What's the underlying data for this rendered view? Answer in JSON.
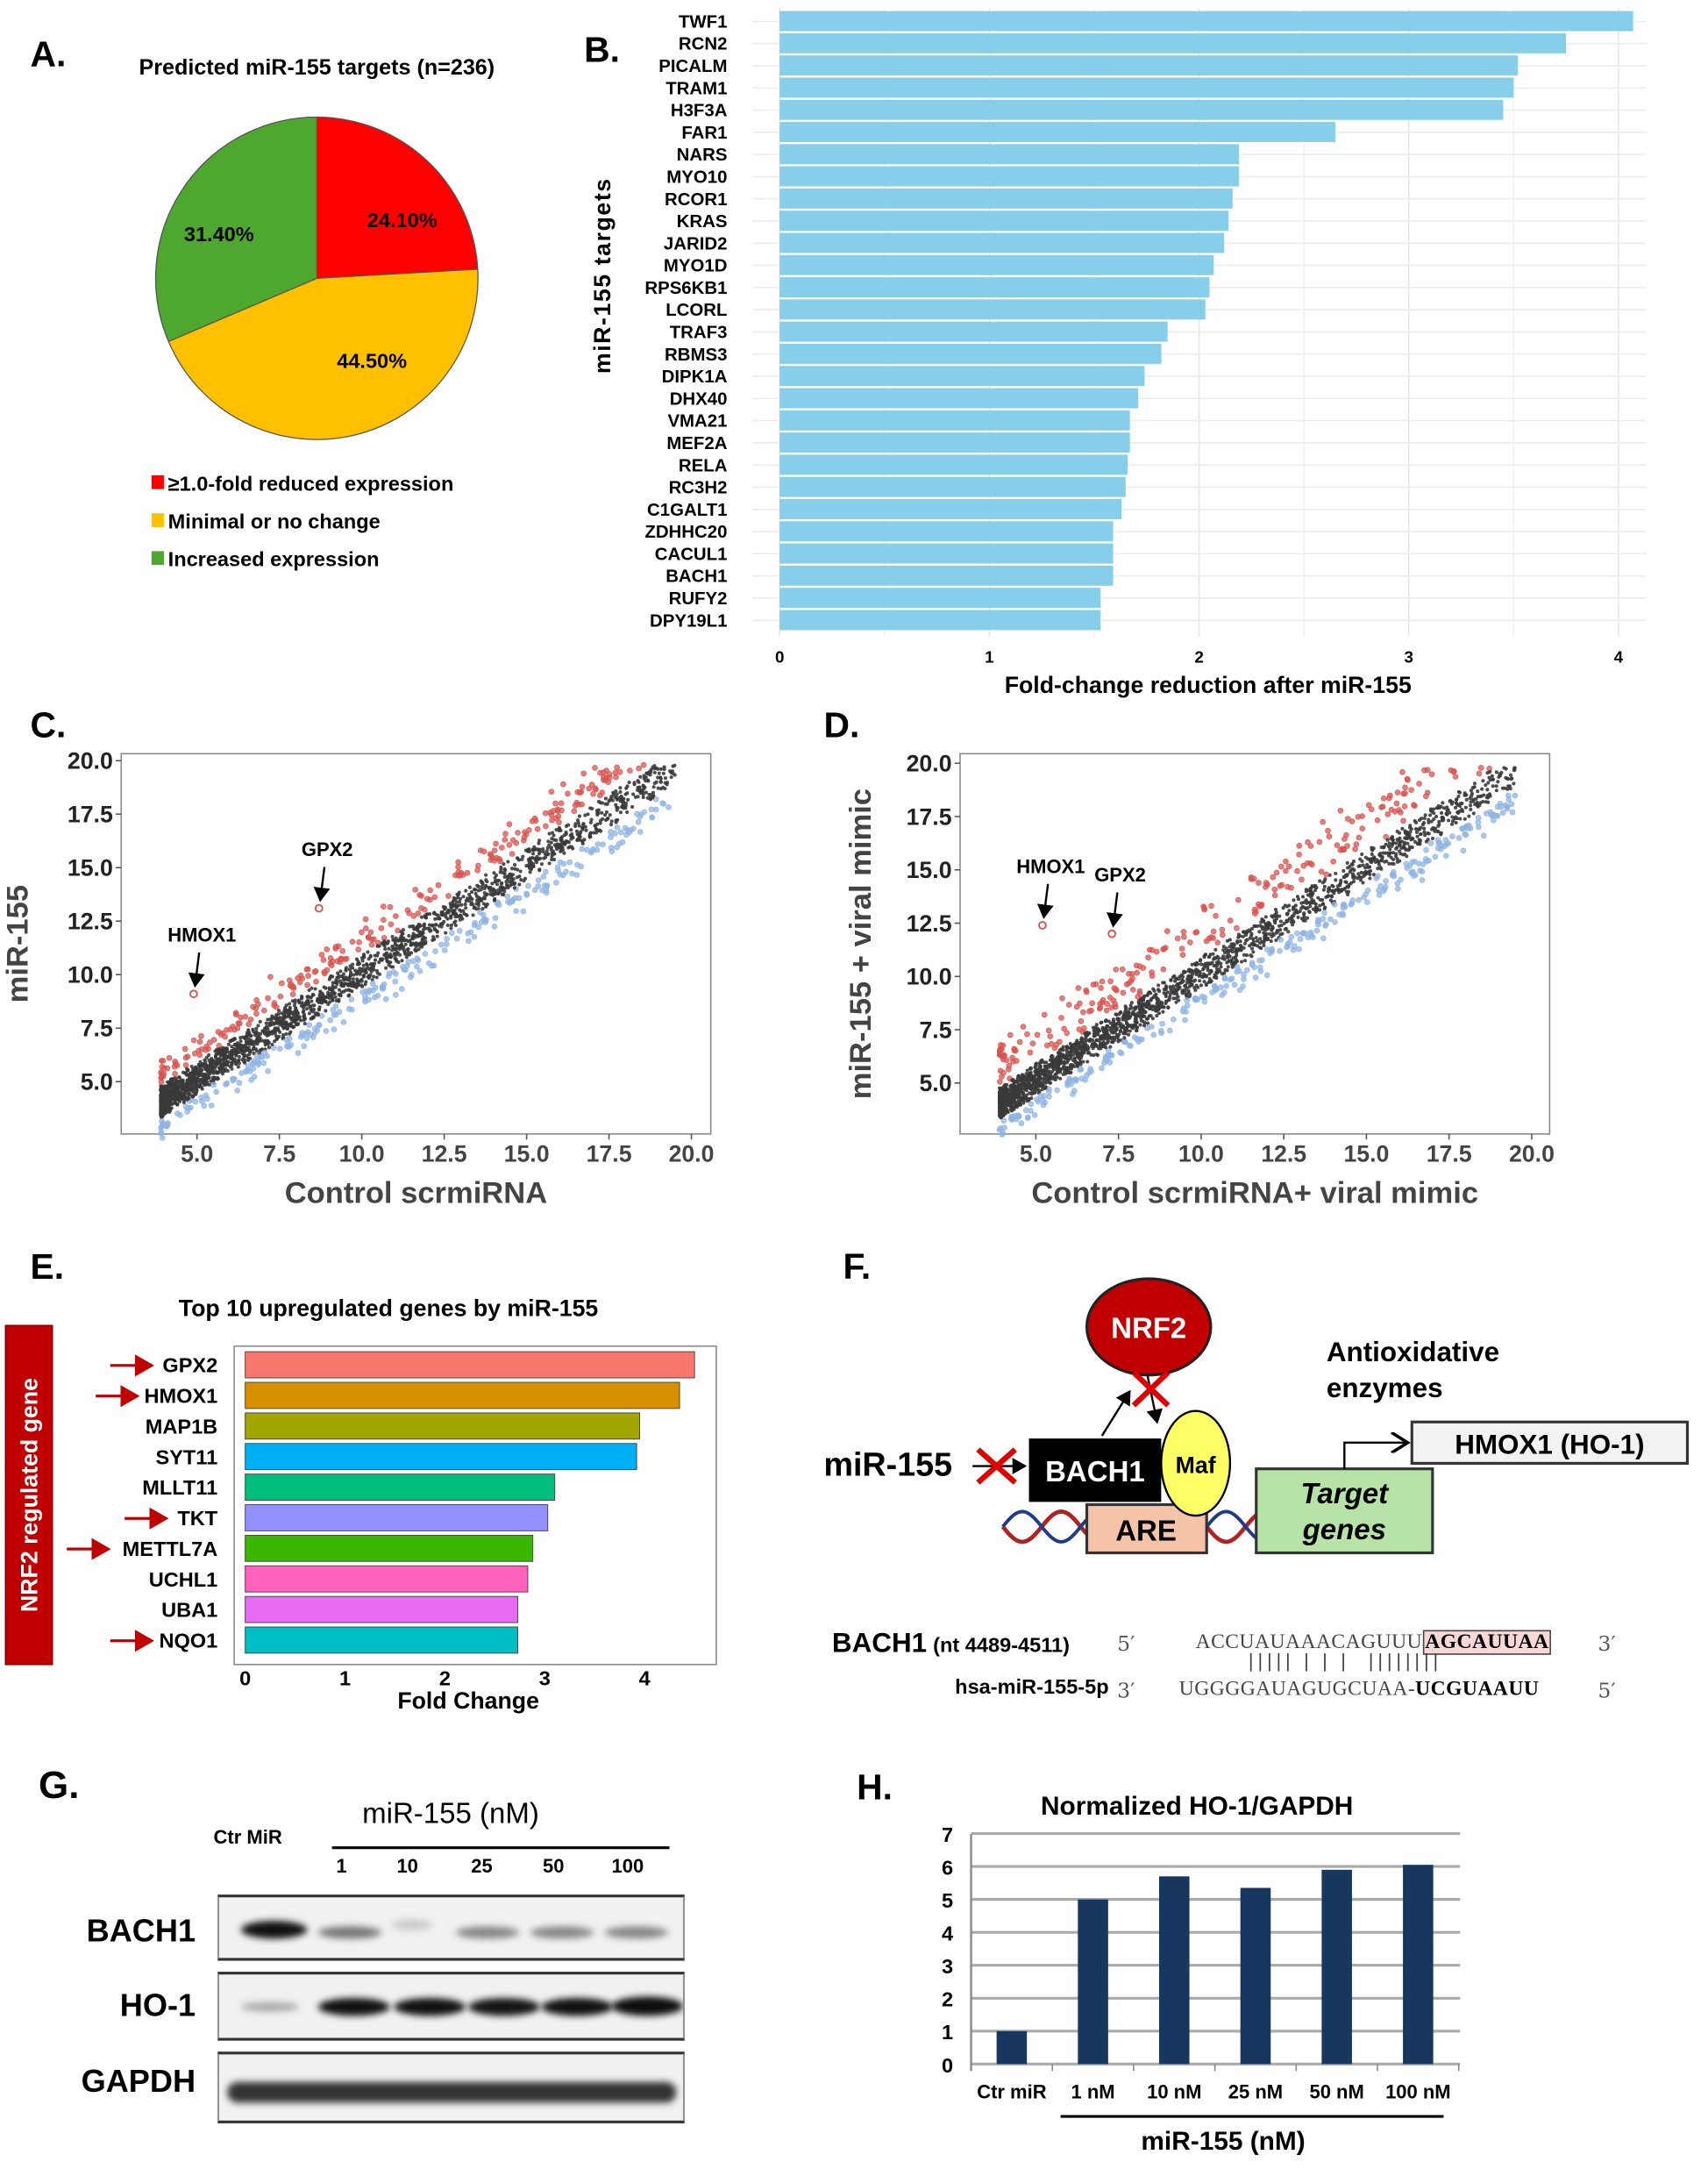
{
  "panels": {
    "A": "A.",
    "B": "B.",
    "C": "C.",
    "D": "D.",
    "E": "E.",
    "F": "F.",
    "G": "G.",
    "H": "H."
  },
  "colors": {
    "red": "#ff0000",
    "yellow": "#ffc000",
    "green": "#4ea72e",
    "barB": "#87ceeb",
    "up": "#d9534f",
    "down": "#8fb4e3",
    "mid": "#3a3a3a",
    "barH": "#17375e"
  },
  "chart_data": [
    {
      "id": "A",
      "type": "pie",
      "title": "Predicted miR-155 targets (n=236)",
      "slices": [
        {
          "label": "≥1.0-fold reduced expression",
          "value": 24.1,
          "text": "24.10%",
          "color": "#ff0000"
        },
        {
          "label": "Minimal or no change",
          "value": 44.5,
          "text": "44.50%",
          "color": "#ffc000"
        },
        {
          "label": "Increased expression",
          "value": 31.4,
          "text": "31.40%",
          "color": "#4ea72e"
        }
      ],
      "legend": "bottom"
    },
    {
      "id": "B",
      "type": "bar",
      "orientation": "horizontal",
      "ylabel": "miR-155 targets",
      "xlabel": "Fold-change reduction after miR-155",
      "xlim": [
        0,
        4.1
      ],
      "xticks": [
        "0",
        "1",
        "2",
        "3",
        "4"
      ],
      "grid": true,
      "categories": [
        "TWF1",
        "RCN2",
        "PICALM",
        "TRAM1",
        "H3F3A",
        "FAR1",
        "NARS",
        "MYO10",
        "RCOR1",
        "KRAS",
        "JARID2",
        "MYO1D",
        "RPS6KB1",
        "LCORL",
        "TRAF3",
        "RBMS3",
        "DIPK1A",
        "DHX40",
        "VMA21",
        "MEF2A",
        "RELA",
        "RC3H2",
        "C1GALT1",
        "ZDHHC20",
        "CACUL1",
        "BACH1",
        "RUFY2",
        "DPY19L1"
      ],
      "values": [
        4.07,
        3.75,
        3.52,
        3.5,
        3.45,
        2.65,
        2.19,
        2.19,
        2.16,
        2.14,
        2.12,
        2.07,
        2.05,
        2.03,
        1.85,
        1.82,
        1.74,
        1.71,
        1.67,
        1.67,
        1.66,
        1.65,
        1.63,
        1.59,
        1.59,
        1.59,
        1.53,
        1.53
      ]
    },
    {
      "id": "C",
      "type": "scatter",
      "xlabel": "Control scrmiRNA",
      "ylabel": "miR-155",
      "xlim": [
        3.7,
        20.6
      ],
      "ylim": [
        3.5,
        20.4
      ],
      "xticks": [
        "5.0",
        "7.5",
        "10.0",
        "12.5",
        "15.0",
        "17.5",
        "20.0"
      ],
      "yticks": [
        "5.0",
        "7.5",
        "10.0",
        "12.5",
        "15.0",
        "17.5",
        "20.0"
      ],
      "series": [
        {
          "name": "upregulated",
          "color": "#d9534f"
        },
        {
          "name": "unchanged",
          "color": "#3a3a3a"
        },
        {
          "name": "downregulated",
          "color": "#8fb4e3"
        }
      ],
      "annotations": [
        {
          "text": "HMOX1",
          "x": 4.9,
          "y": 9.1
        },
        {
          "text": "GPX2",
          "x": 8.7,
          "y": 13.1
        }
      ]
    },
    {
      "id": "D",
      "type": "scatter",
      "xlabel": "Control scrmiRNA+ viral mimic",
      "ylabel": "miR-155 + viral mimic",
      "xlim": [
        3.7,
        20.6
      ],
      "ylim": [
        3.5,
        20.4
      ],
      "xticks": [
        "5.0",
        "7.5",
        "10.0",
        "12.5",
        "15.0",
        "17.5",
        "20.0"
      ],
      "yticks": [
        "5.0",
        "7.5",
        "10.0",
        "12.5",
        "15.0",
        "17.5",
        "20.0"
      ],
      "series": [
        {
          "name": "upregulated",
          "color": "#d9534f"
        },
        {
          "name": "unchanged",
          "color": "#3a3a3a"
        },
        {
          "name": "downregulated",
          "color": "#8fb4e3"
        }
      ],
      "annotations": [
        {
          "text": "HMOX1",
          "x": 5.2,
          "y": 12.4
        },
        {
          "text": "GPX2",
          "x": 7.3,
          "y": 12.0
        }
      ]
    },
    {
      "id": "E",
      "type": "bar",
      "orientation": "horizontal",
      "title": "Top 10 upregulated genes by miR-155",
      "xlabel": "Fold Change",
      "xlim": [
        0,
        4.7
      ],
      "xticks": [
        "0",
        "1",
        "2",
        "3",
        "4"
      ],
      "side_label": "NRF2 regulated gene",
      "categories": [
        "GPX2",
        "HMOX1",
        "MAP1B",
        "SYT11",
        "MLLT11",
        "TKT",
        "METTL7A",
        "UCHL1",
        "UBA1",
        "NQO1"
      ],
      "values": [
        4.5,
        4.35,
        3.95,
        3.92,
        3.1,
        3.03,
        2.88,
        2.83,
        2.73,
        2.73
      ],
      "colors": [
        "#f8766d",
        "#d89000",
        "#a3a500",
        "#00b0f6",
        "#00bf7d",
        "#9590ff",
        "#39b600",
        "#ff62bc",
        "#e76bf3",
        "#00bfc4"
      ],
      "nrf2_marked": [
        true,
        true,
        false,
        false,
        false,
        true,
        true,
        false,
        false,
        true
      ]
    },
    {
      "id": "H",
      "type": "bar",
      "title": "Normalized HO-1/GAPDH",
      "xlabel": "miR-155 (nM)",
      "ylim": [
        0,
        7
      ],
      "yticks": [
        "0",
        "1",
        "2",
        "3",
        "4",
        "5",
        "6",
        "7"
      ],
      "grid": true,
      "categories": [
        "Ctr miR",
        "1 nM",
        "10 nM",
        "25 nM",
        "50 nM",
        "100 nM"
      ],
      "values": [
        1.0,
        5.0,
        5.7,
        5.35,
        5.9,
        6.05
      ]
    }
  ],
  "diagram": {
    "nrf2": "NRF2",
    "antioxidative": "Antioxidative",
    "enzymes": "enzymes",
    "mir155": "miR-155",
    "bach1": "BACH1",
    "maf": "Maf",
    "are": "ARE",
    "target": "Target",
    "genes": "genes",
    "hmox1": "HMOX1 (HO-1)",
    "seq": {
      "bach1_label": "BACH1",
      "bach1_nt": "(nt 4489-4511)",
      "five_prime": "5′",
      "three_prime": "3′",
      "bach1_seq": "ACCUAUAAACAGUUU",
      "bach1_seed": "AGCAUUAA",
      "mir_label": "hsa-miR-155-5p",
      "mir_seq": "UGGGGAUAGUGCUAA-",
      "mir_seed": "UCGUAAUU",
      "pairs": "||||| | | |  ||||||||"
    }
  },
  "western": {
    "header": "miR-155 (nM)",
    "control": "Ctr MiR",
    "lanes": [
      "1",
      "10",
      "25",
      "50",
      "100"
    ],
    "rows": [
      "BACH1",
      "HO-1",
      "GAPDH"
    ]
  }
}
